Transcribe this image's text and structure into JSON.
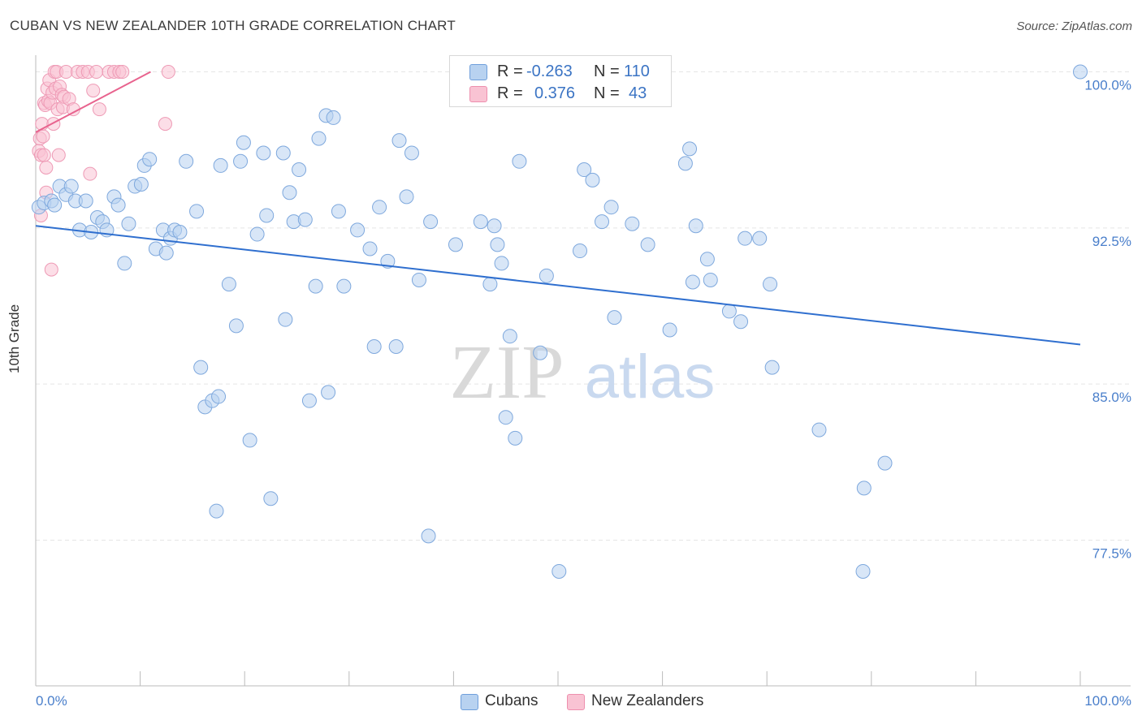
{
  "header": {
    "title": "CUBAN VS NEW ZEALANDER 10TH GRADE CORRELATION CHART",
    "source": "Source: ZipAtlas.com"
  },
  "watermark": {
    "zip": "ZIP",
    "atlas": "atlas"
  },
  "legend": {
    "rows": [
      {
        "r_label": "R =",
        "r_value": "-0.263",
        "n_label": "N =",
        "n_value": "110",
        "color": "#b8d2f0",
        "stroke": "#6f9fdb"
      },
      {
        "r_label": "R =",
        "r_value": "0.376",
        "n_label": "N =",
        "n_value": "43",
        "color": "#f9c3d3",
        "stroke": "#ee8fae"
      }
    ]
  },
  "bottom_legend": {
    "items": [
      "Cubans",
      "New Zealanders"
    ]
  },
  "colors": {
    "blue_fill": "#b8d2f0",
    "blue_stroke": "#7ea8dd",
    "blue_line": "#2f6fcf",
    "pink_fill": "#f9c3d3",
    "pink_stroke": "#ee9ab5",
    "pink_line": "#e8638e",
    "axis_text": "#4a7fcb",
    "grid": "#e5e5e5"
  },
  "chart_data": {
    "type": "scatter",
    "title": "CUBAN VS NEW ZEALANDER 10TH GRADE CORRELATION CHART",
    "xlabel": "",
    "ylabel": "10th Grade",
    "xlim": [
      0,
      100
    ],
    "ylim": [
      70.5,
      100.8
    ],
    "x_tick_labels": [
      "0.0%",
      "100.0%"
    ],
    "y_ticks": [
      77.5,
      85.0,
      92.5,
      100.0
    ],
    "y_tick_labels": [
      "77.5%",
      "85.0%",
      "92.5%",
      "100.0%"
    ],
    "series": [
      {
        "name": "Cubans",
        "trendline": {
          "x": [
            0,
            100
          ],
          "y": [
            92.6,
            86.9
          ]
        },
        "points": [
          [
            0.3,
            93.5
          ],
          [
            0.8,
            93.7
          ],
          [
            1.5,
            93.8
          ],
          [
            1.8,
            93.6
          ],
          [
            2.3,
            94.5
          ],
          [
            2.9,
            94.1
          ],
          [
            3.4,
            94.5
          ],
          [
            3.8,
            93.8
          ],
          [
            4.2,
            92.4
          ],
          [
            4.8,
            93.8
          ],
          [
            5.3,
            92.3
          ],
          [
            5.9,
            93.0
          ],
          [
            6.4,
            92.8
          ],
          [
            6.8,
            92.4
          ],
          [
            7.5,
            94.0
          ],
          [
            7.9,
            93.6
          ],
          [
            8.5,
            90.8
          ],
          [
            8.9,
            92.7
          ],
          [
            9.5,
            94.5
          ],
          [
            10.1,
            94.6
          ],
          [
            10.4,
            95.5
          ],
          [
            10.9,
            95.8
          ],
          [
            11.5,
            91.5
          ],
          [
            12.2,
            92.4
          ],
          [
            12.5,
            91.3
          ],
          [
            12.9,
            92.0
          ],
          [
            13.3,
            92.4
          ],
          [
            13.8,
            92.3
          ],
          [
            14.4,
            95.7
          ],
          [
            15.4,
            93.3
          ],
          [
            15.8,
            85.8
          ],
          [
            16.2,
            83.9
          ],
          [
            16.9,
            84.2
          ],
          [
            17.3,
            78.9
          ],
          [
            17.5,
            84.4
          ],
          [
            17.7,
            95.5
          ],
          [
            18.5,
            89.8
          ],
          [
            19.2,
            87.8
          ],
          [
            19.6,
            95.7
          ],
          [
            19.9,
            96.6
          ],
          [
            20.5,
            82.3
          ],
          [
            21.2,
            92.2
          ],
          [
            21.8,
            96.1
          ],
          [
            22.1,
            93.1
          ],
          [
            22.5,
            79.5
          ],
          [
            23.7,
            96.1
          ],
          [
            23.9,
            88.1
          ],
          [
            24.3,
            94.2
          ],
          [
            24.7,
            92.8
          ],
          [
            25.2,
            95.3
          ],
          [
            25.8,
            92.9
          ],
          [
            26.2,
            84.2
          ],
          [
            26.8,
            89.7
          ],
          [
            27.1,
            96.8
          ],
          [
            27.8,
            97.9
          ],
          [
            28.0,
            84.6
          ],
          [
            28.5,
            97.8
          ],
          [
            29.0,
            93.3
          ],
          [
            29.5,
            89.7
          ],
          [
            30.8,
            92.4
          ],
          [
            32.0,
            91.5
          ],
          [
            32.4,
            86.8
          ],
          [
            32.9,
            93.5
          ],
          [
            33.7,
            90.9
          ],
          [
            34.5,
            86.8
          ],
          [
            34.8,
            96.7
          ],
          [
            35.5,
            94.0
          ],
          [
            36.0,
            96.1
          ],
          [
            36.7,
            90.0
          ],
          [
            37.6,
            77.7
          ],
          [
            37.8,
            92.8
          ],
          [
            40.2,
            91.7
          ],
          [
            42.6,
            92.8
          ],
          [
            43.5,
            89.8
          ],
          [
            43.9,
            92.6
          ],
          [
            44.2,
            91.7
          ],
          [
            44.6,
            90.8
          ],
          [
            45.0,
            83.4
          ],
          [
            45.4,
            87.3
          ],
          [
            45.9,
            82.4
          ],
          [
            46.3,
            95.7
          ],
          [
            48.3,
            86.5
          ],
          [
            48.9,
            90.2
          ],
          [
            50.1,
            76.0
          ],
          [
            52.1,
            91.4
          ],
          [
            52.5,
            95.3
          ],
          [
            53.3,
            94.8
          ],
          [
            54.2,
            92.8
          ],
          [
            55.1,
            93.5
          ],
          [
            55.4,
            88.2
          ],
          [
            57.1,
            92.7
          ],
          [
            58.6,
            91.7
          ],
          [
            60.7,
            87.6
          ],
          [
            62.2,
            95.6
          ],
          [
            62.6,
            96.3
          ],
          [
            62.9,
            89.9
          ],
          [
            63.2,
            92.6
          ],
          [
            64.3,
            91.0
          ],
          [
            64.6,
            90.0
          ],
          [
            66.4,
            88.5
          ],
          [
            67.5,
            88.0
          ],
          [
            67.9,
            92.0
          ],
          [
            69.3,
            92.0
          ],
          [
            70.3,
            89.8
          ],
          [
            70.5,
            85.8
          ],
          [
            75.0,
            82.8
          ],
          [
            79.3,
            80.0
          ],
          [
            81.3,
            81.2
          ],
          [
            79.2,
            76.0
          ],
          [
            100.0,
            100.0
          ]
        ]
      },
      {
        "name": "New Zealanders",
        "trendline": {
          "x": [
            0,
            11
          ],
          "y": [
            97.1,
            100.0
          ]
        },
        "points": [
          [
            0.3,
            96.2
          ],
          [
            0.4,
            96.8
          ],
          [
            0.5,
            96.0
          ],
          [
            0.6,
            97.5
          ],
          [
            0.7,
            96.9
          ],
          [
            0.8,
            96.0
          ],
          [
            0.8,
            98.5
          ],
          [
            0.9,
            98.4
          ],
          [
            1.0,
            95.4
          ],
          [
            1.0,
            94.2
          ],
          [
            1.1,
            99.2
          ],
          [
            1.2,
            98.6
          ],
          [
            1.3,
            99.6
          ],
          [
            1.4,
            98.5
          ],
          [
            1.5,
            90.5
          ],
          [
            1.6,
            99.0
          ],
          [
            1.7,
            97.5
          ],
          [
            1.8,
            100.0
          ],
          [
            1.9,
            99.2
          ],
          [
            2.0,
            100.0
          ],
          [
            2.1,
            98.2
          ],
          [
            2.2,
            96.0
          ],
          [
            2.3,
            99.3
          ],
          [
            2.5,
            98.9
          ],
          [
            2.6,
            98.3
          ],
          [
            2.7,
            98.8
          ],
          [
            2.9,
            100.0
          ],
          [
            3.2,
            98.7
          ],
          [
            3.6,
            98.2
          ],
          [
            4.0,
            100.0
          ],
          [
            4.5,
            100.0
          ],
          [
            5.0,
            100.0
          ],
          [
            5.2,
            95.1
          ],
          [
            5.5,
            99.1
          ],
          [
            5.8,
            100.0
          ],
          [
            6.1,
            98.2
          ],
          [
            7.0,
            100.0
          ],
          [
            7.5,
            100.0
          ],
          [
            8.0,
            100.0
          ],
          [
            8.3,
            100.0
          ],
          [
            12.4,
            97.5
          ],
          [
            12.7,
            100.0
          ],
          [
            0.5,
            93.1
          ]
        ]
      }
    ]
  }
}
